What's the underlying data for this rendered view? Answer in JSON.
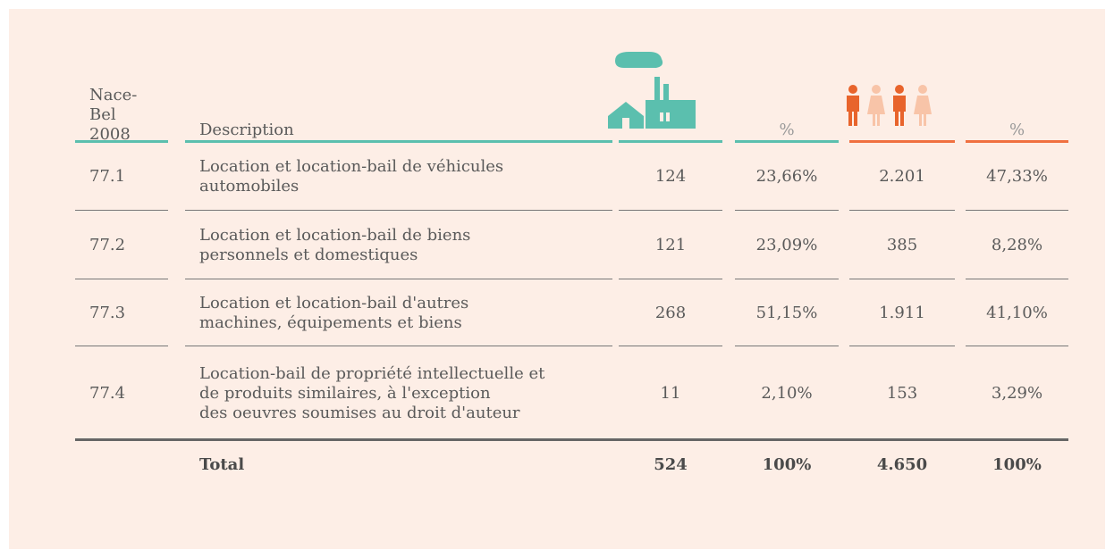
{
  "table": {
    "header": {
      "code": [
        "Nace-",
        "Bel",
        "2008"
      ],
      "description": "Description",
      "percent_1": "%",
      "percent_2": "%"
    },
    "rows": [
      {
        "code": "77.1",
        "description": [
          "Location et location-bail de véhicules",
          "automobiles"
        ],
        "values": [
          "124",
          "23,66%",
          "2.201",
          "47,33%"
        ]
      },
      {
        "code": "77.2",
        "description": [
          "Location et location-bail de biens",
          "personnels et domestiques"
        ],
        "values": [
          "121",
          "23,09%",
          "385",
          "8,28%"
        ]
      },
      {
        "code": "77.3",
        "description": [
          "Location et location-bail d'autres",
          "machines, équipements et biens"
        ],
        "values": [
          "268",
          "51,15%",
          "1.911",
          "41,10%"
        ]
      },
      {
        "code": "77.4",
        "description": [
          "Location-bail de propriété intellectuelle et",
          "de produits similaires, à l'exception",
          "des oeuvres soumises au droit d'auteur"
        ],
        "values": [
          "11",
          "2,10%",
          "153",
          "3,29%"
        ]
      }
    ],
    "total": {
      "label": "Total",
      "values": [
        "524",
        "100%",
        "4.650",
        "100%"
      ]
    }
  }
}
